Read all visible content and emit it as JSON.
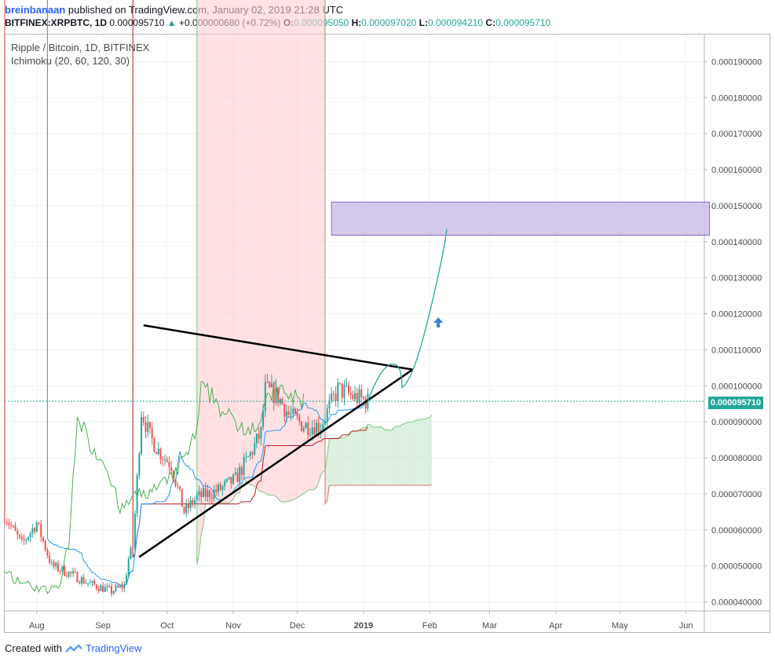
{
  "header": {
    "author": "breinbanaan",
    "published_text": "published on TradingView.com, January 02, 2019 21:28 UTC",
    "symbol": "BITFINEX:XRPBTC, 1D",
    "last": "0.000095710",
    "change_arrow": "▲",
    "change": "+0.000000680 (+0.72%)",
    "o_label": "O:",
    "o_value": "0.000095050",
    "h_label": "H:",
    "h_value": "0.000097020",
    "l_label": "L:",
    "l_value": "0.000094210",
    "c_label": "C:",
    "c_value": "0.000095710"
  },
  "legend": {
    "title": "Ripple / Bitcoin, 1D, BITFINEX",
    "indicator": "Ichimoku (20, 60, 120, 30)"
  },
  "footer": {
    "created_with": "Created with",
    "brand": "TradingView"
  },
  "chart_data": {
    "type": "candlestick",
    "y_range": [
      3.75e-05,
      0.0001975
    ],
    "y_ticks": [
      "0.000190000",
      "0.000180000",
      "0.000170000",
      "0.000160000",
      "0.000150000",
      "0.000140000",
      "0.000130000",
      "0.000120000",
      "0.000110000",
      "0.000100000",
      "0.000090000",
      "0.000080000",
      "0.000070000",
      "0.000060000",
      "0.000050000",
      "0.000040000"
    ],
    "x_ticks": [
      "Aug",
      "Sep",
      "Oct",
      "Nov",
      "Dec",
      "2019",
      "Feb",
      "Mar",
      "Apr",
      "May",
      "Jun"
    ],
    "last_price_label": "0.000095710",
    "last_price": 9.571e-05,
    "colors": {
      "up": "#26a69a",
      "down": "#ef5350",
      "kijun": "#b71c1c",
      "tenkan": "#2196f3",
      "chikou": "#4caf50",
      "cloud_bull": "#c8e6c9",
      "cloud_bear": "#ffcdd2",
      "target_box": "#d1c4e9",
      "target_border": "#7e57c2",
      "projection": "#26a69a",
      "arrow": "#3d7fd1"
    },
    "triangle": {
      "apex_date": "2019-01-24",
      "apex_price": 0.0001045,
      "upper_start_date": "2018-09-20",
      "upper_start_price": 0.0001168,
      "lower_start_date": "2018-09-18",
      "lower_start_price": 5.25e-05
    },
    "target_zone": {
      "start_date": "2018-12-17",
      "end_date": "2019-06-12",
      "top": 0.000151,
      "bottom": 0.0001418
    }
  }
}
